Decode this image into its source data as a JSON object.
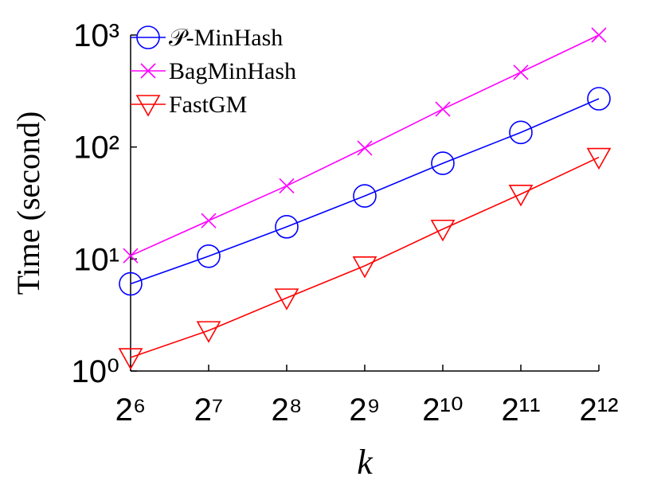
{
  "chart_data": {
    "type": "line",
    "x_label": "k",
    "y_label": "Time (second)",
    "x": [
      64,
      128,
      256,
      512,
      1024,
      2048,
      4096
    ],
    "xlim": [
      64,
      4096
    ],
    "xticks": [
      {
        "value": 64,
        "label": "2⁶"
      },
      {
        "value": 128,
        "label": "2⁷"
      },
      {
        "value": 256,
        "label": "2⁸"
      },
      {
        "value": 512,
        "label": "2⁹"
      },
      {
        "value": 1024,
        "label": "2¹⁰"
      },
      {
        "value": 2048,
        "label": "2¹¹"
      },
      {
        "value": 4096,
        "label": "2¹²"
      }
    ],
    "xscale": "log2",
    "ylim": [
      1,
      1000
    ],
    "yticks": [
      {
        "value": 1,
        "label": "10⁰"
      },
      {
        "value": 10,
        "label": "10¹"
      },
      {
        "value": 100,
        "label": "10²"
      },
      {
        "value": 1000,
        "label": "10³"
      }
    ],
    "yscale": "log",
    "legend": "upper left",
    "series": [
      {
        "name": "𝒫-MinHash",
        "color": "#0000ff",
        "marker": "circle",
        "values": [
          6.0,
          10.6,
          19.4,
          36.6,
          71.6,
          135,
          270
        ]
      },
      {
        "name": "BagMinHash",
        "color": "#ff00ff",
        "marker": "x",
        "values": [
          10.7,
          22,
          45,
          98,
          218,
          465,
          1000
        ]
      },
      {
        "name": "FastGM",
        "color": "#ff0000",
        "marker": "triangle-down",
        "values": [
          1.32,
          2.3,
          4.5,
          8.7,
          18.5,
          38,
          81
        ]
      }
    ]
  }
}
